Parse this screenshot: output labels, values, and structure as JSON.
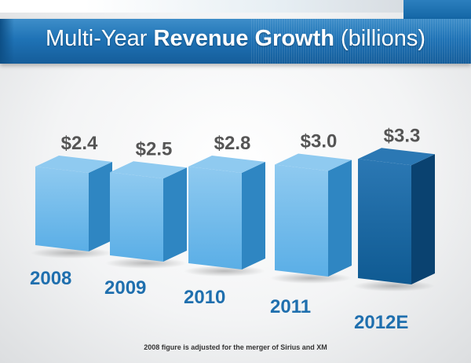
{
  "title": {
    "prefix": "Multi-Year ",
    "bold": "Revenue Growth",
    "suffix": " (billions)"
  },
  "footnote": "2008 figure is adjusted for the merger of Sirius and XM",
  "colors": {
    "actual_front": "#5aaee6",
    "actual_side": "#2f86c2",
    "actual_top": "#8fcaf0",
    "estimate_front": "#0f5a92",
    "estimate_side": "#0a4270",
    "estimate_top": "#2b78b4",
    "year_label": "#1f6fae",
    "value_label": "#555555"
  },
  "chart_data": {
    "type": "bar",
    "title": "Multi-Year Revenue Growth (billions)",
    "xlabel": "",
    "ylabel": "",
    "categories": [
      "2008",
      "2009",
      "2010",
      "2011",
      "2012E"
    ],
    "values": [
      2.4,
      2.5,
      2.8,
      3.0,
      3.3
    ],
    "value_labels": [
      "$2.4",
      "$2.5",
      "$2.8",
      "$3.0",
      "$3.3"
    ],
    "estimate_categories": [
      "2012E"
    ],
    "grid": false,
    "legend": "none"
  }
}
